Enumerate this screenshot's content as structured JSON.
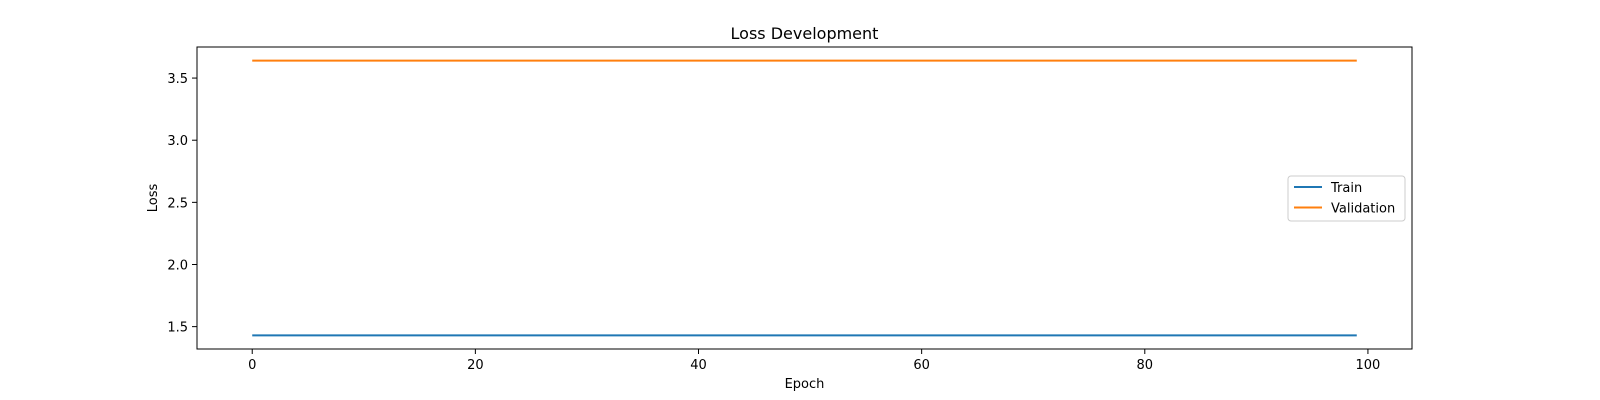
{
  "chart_data": {
    "type": "line",
    "title": "Loss Development",
    "xlabel": "Epoch",
    "ylabel": "Loss",
    "xlim": [
      -4.95,
      103.95
    ],
    "ylim": [
      1.32,
      3.75
    ],
    "xticks": [
      0,
      20,
      40,
      60,
      80,
      100
    ],
    "yticks": [
      1.5,
      2.0,
      2.5,
      3.0,
      3.5
    ],
    "xtick_labels": [
      "0",
      "20",
      "40",
      "60",
      "80",
      "100"
    ],
    "ytick_labels": [
      "1.5",
      "2.0",
      "2.5",
      "3.0",
      "3.5"
    ],
    "grid": false,
    "legend_position": "center-right",
    "series": [
      {
        "name": "Train",
        "color": "#1f77b4",
        "x": [
          0,
          99
        ],
        "y": [
          1.43,
          1.43
        ]
      },
      {
        "name": "Validation",
        "color": "#ff7f0e",
        "x": [
          0,
          99
        ],
        "y": [
          3.64,
          3.64
        ]
      }
    ]
  }
}
